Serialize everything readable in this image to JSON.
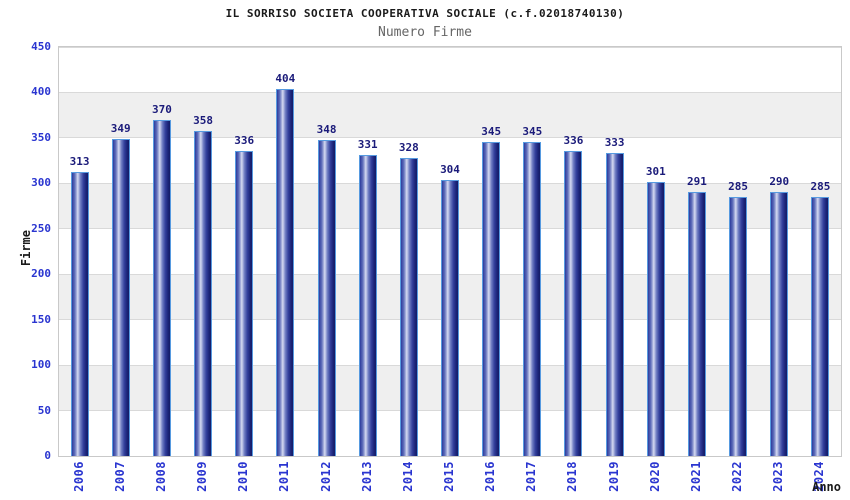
{
  "chart_data": {
    "type": "bar",
    "title": "IL SORRISO SOCIETA COOPERATIVA SOCIALE (c.f.02018740130)",
    "subtitle": "Numero Firme",
    "xlabel": "Anno",
    "ylabel": "Firme",
    "categories": [
      "2006",
      "2007",
      "2008",
      "2009",
      "2010",
      "2011",
      "2012",
      "2013",
      "2014",
      "2015",
      "2016",
      "2017",
      "2018",
      "2019",
      "2020",
      "2021",
      "2022",
      "2023",
      "2024"
    ],
    "values": [
      313,
      349,
      370,
      358,
      336,
      404,
      348,
      331,
      328,
      304,
      345,
      345,
      336,
      333,
      301,
      291,
      285,
      290,
      285
    ],
    "ylim": [
      0,
      450
    ],
    "yticks": [
      0,
      50,
      100,
      150,
      200,
      250,
      300,
      350,
      400,
      450
    ],
    "grid": "horizontal",
    "legend": "none",
    "colors": {
      "axis_label_blue": "#2a35d0",
      "value_label_navy": "#1b1b7a",
      "bar_dark": "#1b2478",
      "bar_light": "#d4d9f1",
      "bar_outline": "#569ae0",
      "band_gray": "#efefef",
      "title_color": "#1a1a1a",
      "subtitle_color": "#666666"
    }
  }
}
